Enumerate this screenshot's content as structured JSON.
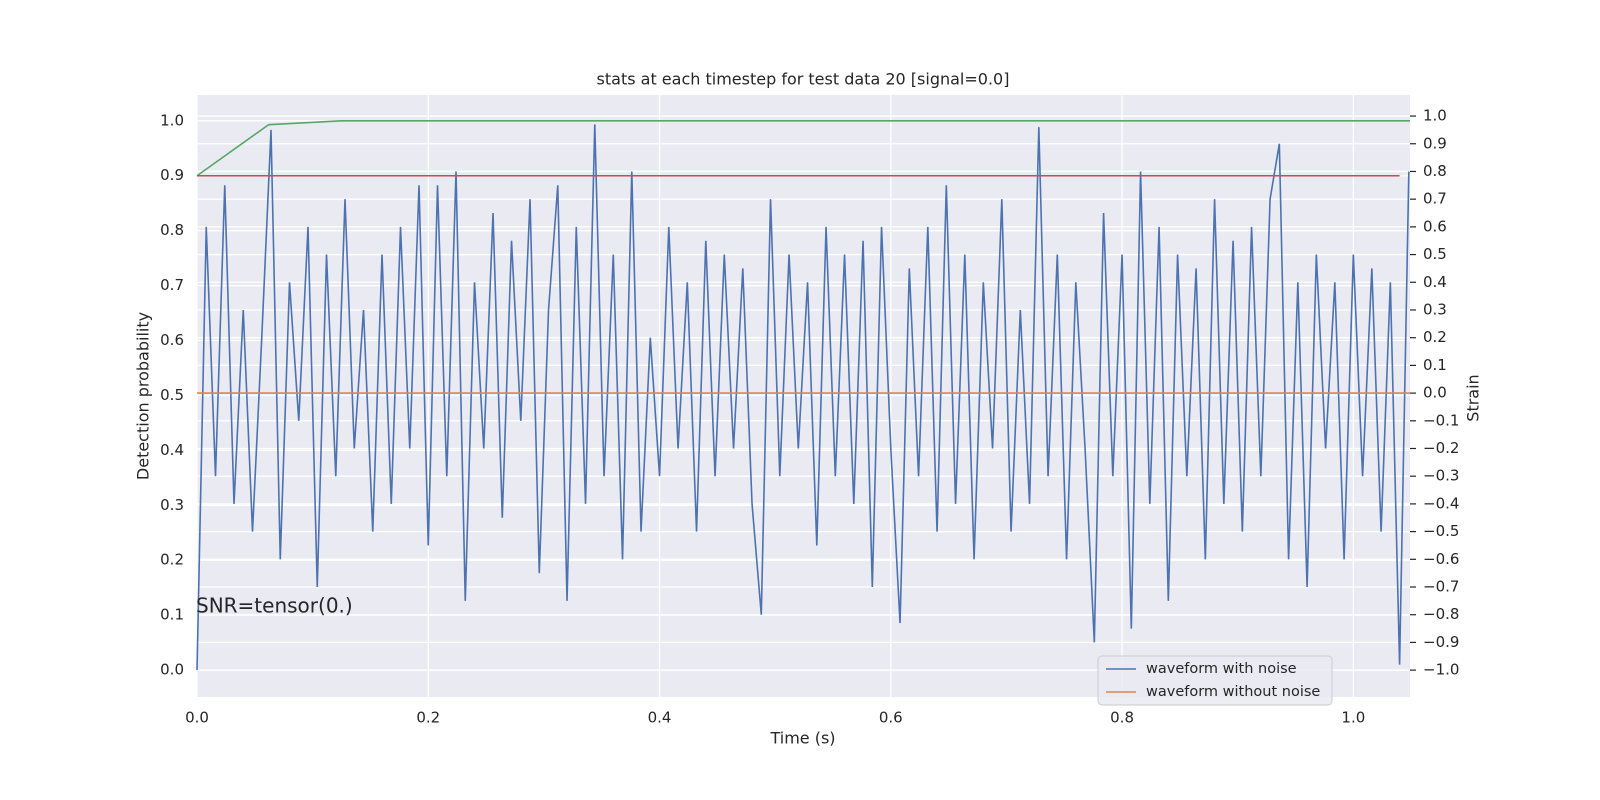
{
  "chart_data": {
    "type": "line",
    "title": "stats at each timestep for test data 20 [signal=0.0]",
    "xlabel": "Time (s)",
    "ylabel": "Detection probability",
    "y2label": "Strain",
    "annotation": "SNR=tensor(0.)",
    "xlim": [
      0,
      1.049
    ],
    "ylim": [
      -0.049,
      1.047
    ],
    "y2lim": [
      -1.097,
      1.076
    ],
    "xticks": [
      {
        "value": 0,
        "label": "0.0"
      },
      0.2,
      0.4,
      0.6,
      0.8,
      {
        "value": 1,
        "label": "1.0"
      }
    ],
    "yticks": [
      {
        "value": 0,
        "label": "0.0"
      },
      0.1,
      0.2,
      0.3,
      0.4,
      0.5,
      0.6,
      0.7,
      0.8,
      0.9,
      {
        "value": 1,
        "label": "1.0"
      }
    ],
    "y2ticks": [
      {
        "value": -1,
        "label": "−1.0"
      },
      {
        "value": -0.9,
        "label": "−0.9"
      },
      {
        "value": -0.8,
        "label": "−0.8"
      },
      {
        "value": -0.7,
        "label": "−0.7"
      },
      {
        "value": -0.6,
        "label": "−0.6"
      },
      {
        "value": -0.5,
        "label": "−0.5"
      },
      {
        "value": -0.4,
        "label": "−0.4"
      },
      {
        "value": -0.3,
        "label": "−0.3"
      },
      {
        "value": -0.2,
        "label": "−0.2"
      },
      {
        "value": -0.1,
        "label": "−0.1"
      },
      {
        "value": 0,
        "label": "0.0"
      },
      0.1,
      0.2,
      0.3,
      0.4,
      0.5,
      0.6,
      0.7,
      0.8,
      0.9,
      {
        "value": 1,
        "label": "1.0"
      }
    ],
    "grid": true,
    "legend": "lower right",
    "series": [
      {
        "name": "waveform with noise",
        "color": "#4c72b0",
        "axis": "y2",
        "x": [
          0,
          0.008,
          0.016,
          0.024,
          0.032,
          0.04,
          0.048,
          0.056,
          0.064,
          0.072,
          0.08,
          0.088,
          0.096,
          0.104,
          0.112,
          0.12,
          0.128,
          0.136,
          0.144,
          0.152,
          0.16,
          0.168,
          0.176,
          0.184,
          0.192,
          0.2,
          0.208,
          0.216,
          0.224,
          0.232,
          0.24,
          0.248,
          0.256,
          0.264,
          0.272,
          0.28,
          0.288,
          0.296,
          0.304,
          0.312,
          0.32,
          0.328,
          0.336,
          0.344,
          0.352,
          0.36,
          0.368,
          0.376,
          0.384,
          0.392,
          0.4,
          0.408,
          0.416,
          0.424,
          0.432,
          0.44,
          0.448,
          0.456,
          0.464,
          0.472,
          0.48,
          0.488,
          0.496,
          0.504,
          0.512,
          0.52,
          0.528,
          0.536,
          0.544,
          0.552,
          0.56,
          0.568,
          0.576,
          0.584,
          0.592,
          0.6,
          0.608,
          0.616,
          0.624,
          0.632,
          0.64,
          0.648,
          0.656,
          0.664,
          0.672,
          0.68,
          0.688,
          0.696,
          0.704,
          0.712,
          0.72,
          0.728,
          0.736,
          0.744,
          0.752,
          0.76,
          0.768,
          0.776,
          0.784,
          0.792,
          0.8,
          0.808,
          0.816,
          0.824,
          0.832,
          0.84,
          0.848,
          0.856,
          0.864,
          0.872,
          0.88,
          0.888,
          0.896,
          0.904,
          0.912,
          0.92,
          0.928,
          0.936,
          0.944,
          0.952,
          0.96,
          0.968,
          0.976,
          0.984,
          0.992,
          1,
          1.008,
          1.016,
          1.024,
          1.032,
          1.04,
          1.048
        ],
        "values": [
          -1.0,
          0.6,
          -0.3,
          0.75,
          -0.4,
          0.3,
          -0.5,
          0.2,
          0.95,
          -0.6,
          0.4,
          -0.1,
          0.6,
          -0.7,
          0.5,
          -0.3,
          0.7,
          -0.2,
          0.3,
          -0.5,
          0.5,
          -0.4,
          0.6,
          -0.2,
          0.75,
          -0.55,
          0.75,
          -0.3,
          0.8,
          -0.75,
          0.4,
          -0.2,
          0.65,
          -0.45,
          0.55,
          -0.1,
          0.7,
          -0.65,
          0.3,
          0.75,
          -0.75,
          0.6,
          -0.4,
          0.97,
          -0.3,
          0.5,
          -0.6,
          0.8,
          -0.5,
          0.2,
          -0.3,
          0.6,
          -0.2,
          0.4,
          -0.5,
          0.55,
          -0.3,
          0.5,
          -0.2,
          0.45,
          -0.4,
          -0.8,
          0.7,
          -0.3,
          0.5,
          -0.2,
          0.4,
          -0.55,
          0.6,
          -0.3,
          0.5,
          -0.4,
          0.55,
          -0.7,
          0.6,
          -0.2,
          -0.83,
          0.45,
          -0.3,
          0.6,
          -0.5,
          0.75,
          -0.4,
          0.5,
          -0.6,
          0.4,
          -0.2,
          0.7,
          -0.5,
          0.3,
          -0.4,
          0.96,
          -0.3,
          0.5,
          -0.6,
          0.4,
          -0.2,
          -0.9,
          0.65,
          -0.3,
          0.5,
          -0.85,
          0.8,
          -0.4,
          0.6,
          -0.75,
          0.5,
          -0.3,
          0.45,
          -0.6,
          0.7,
          -0.4,
          0.55,
          -0.5,
          0.6,
          -0.3,
          0.7,
          0.9,
          -0.6,
          0.4,
          -0.7,
          0.5,
          -0.2,
          0.4,
          -0.6,
          0.5,
          -0.3,
          0.45,
          -0.5,
          0.4,
          -0.98,
          0.8
        ]
      },
      {
        "name": "waveform without noise",
        "color": "#dd8452",
        "axis": "y2",
        "x": [
          0,
          1.049
        ],
        "values": [
          0,
          0
        ]
      },
      {
        "color": "#55a868",
        "x": [
          0,
          0.062,
          0.125,
          1.049
        ],
        "values": [
          0.9,
          0.993,
          1.0,
          1.0
        ]
      },
      {
        "color": "#c44e52",
        "x": [
          0,
          1.04
        ],
        "values": [
          0.9,
          0.9
        ]
      }
    ]
  }
}
